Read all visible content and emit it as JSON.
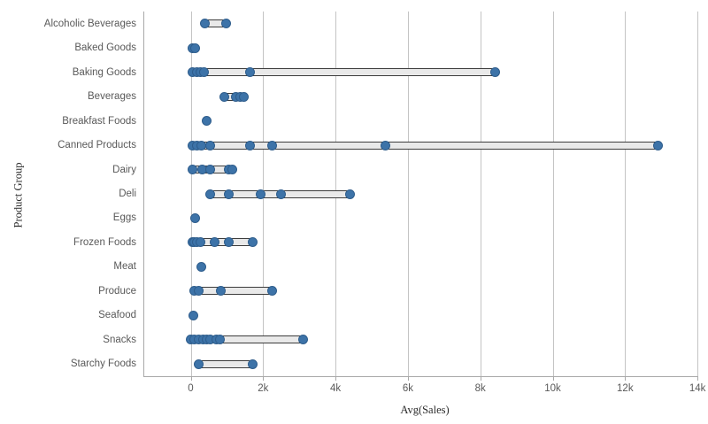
{
  "chart_data": {
    "type": "scatter",
    "subtype": "distribution-strip-plot",
    "title": "",
    "xlabel": "Avg(Sales)",
    "ylabel": "Product Group",
    "x_tick_values": [
      0,
      2000,
      4000,
      6000,
      8000,
      10000,
      12000,
      14000
    ],
    "x_tick_labels": [
      "0",
      "2k",
      "4k",
      "6k",
      "8k",
      "10k",
      "12k",
      "14k"
    ],
    "xlim": [
      -1300,
      14000
    ],
    "grid": true,
    "legend": false,
    "point_color": "#3d73a8",
    "point_border_color": "#2e5d8c",
    "range_bar_fill": "#e9e9e9",
    "range_bar_border": "#3c3c3c",
    "gridline_color": "#c4c4c4",
    "axis_line_color": "#a9a9a9",
    "tick_label_color": "#595959",
    "category_label_color": "#595959",
    "categories": [
      "Alcoholic Beverages",
      "Baked Goods",
      "Baking Goods",
      "Beverages",
      "Breakfast Foods",
      "Canned Products",
      "Dairy",
      "Deli",
      "Eggs",
      "Frozen Foods",
      "Meat",
      "Produce",
      "Seafood",
      "Snacks",
      "Starchy Foods"
    ],
    "series": [
      {
        "name": "Alcoholic Beverages",
        "values": [
          400,
          970
        ]
      },
      {
        "name": "Baked Goods",
        "values": [
          40,
          130
        ]
      },
      {
        "name": "Baking Goods",
        "values": [
          60,
          160,
          260,
          360,
          1630,
          8400
        ]
      },
      {
        "name": "Beverages",
        "values": [
          940,
          1240,
          1360,
          1460
        ]
      },
      {
        "name": "Breakfast Foods",
        "values": [
          430
        ]
      },
      {
        "name": "Canned Products",
        "values": [
          60,
          180,
          300,
          530,
          1650,
          2260,
          5370,
          12900
        ]
      },
      {
        "name": "Dairy",
        "values": [
          60,
          330,
          530,
          1050,
          1150
        ]
      },
      {
        "name": "Deli",
        "values": [
          530,
          1040,
          1940,
          2500,
          4390
        ]
      },
      {
        "name": "Eggs",
        "values": [
          120
        ]
      },
      {
        "name": "Frozen Foods",
        "values": [
          40,
          110,
          180,
          260,
          650,
          1040,
          1700
        ]
      },
      {
        "name": "Meat",
        "values": [
          290
        ]
      },
      {
        "name": "Produce",
        "values": [
          110,
          210,
          840,
          2240
        ]
      },
      {
        "name": "Seafood",
        "values": [
          70
        ]
      },
      {
        "name": "Snacks",
        "values": [
          10,
          90,
          210,
          350,
          450,
          550,
          700,
          800,
          3100
        ]
      },
      {
        "name": "Starchy Foods",
        "values": [
          230,
          1700
        ]
      }
    ]
  }
}
